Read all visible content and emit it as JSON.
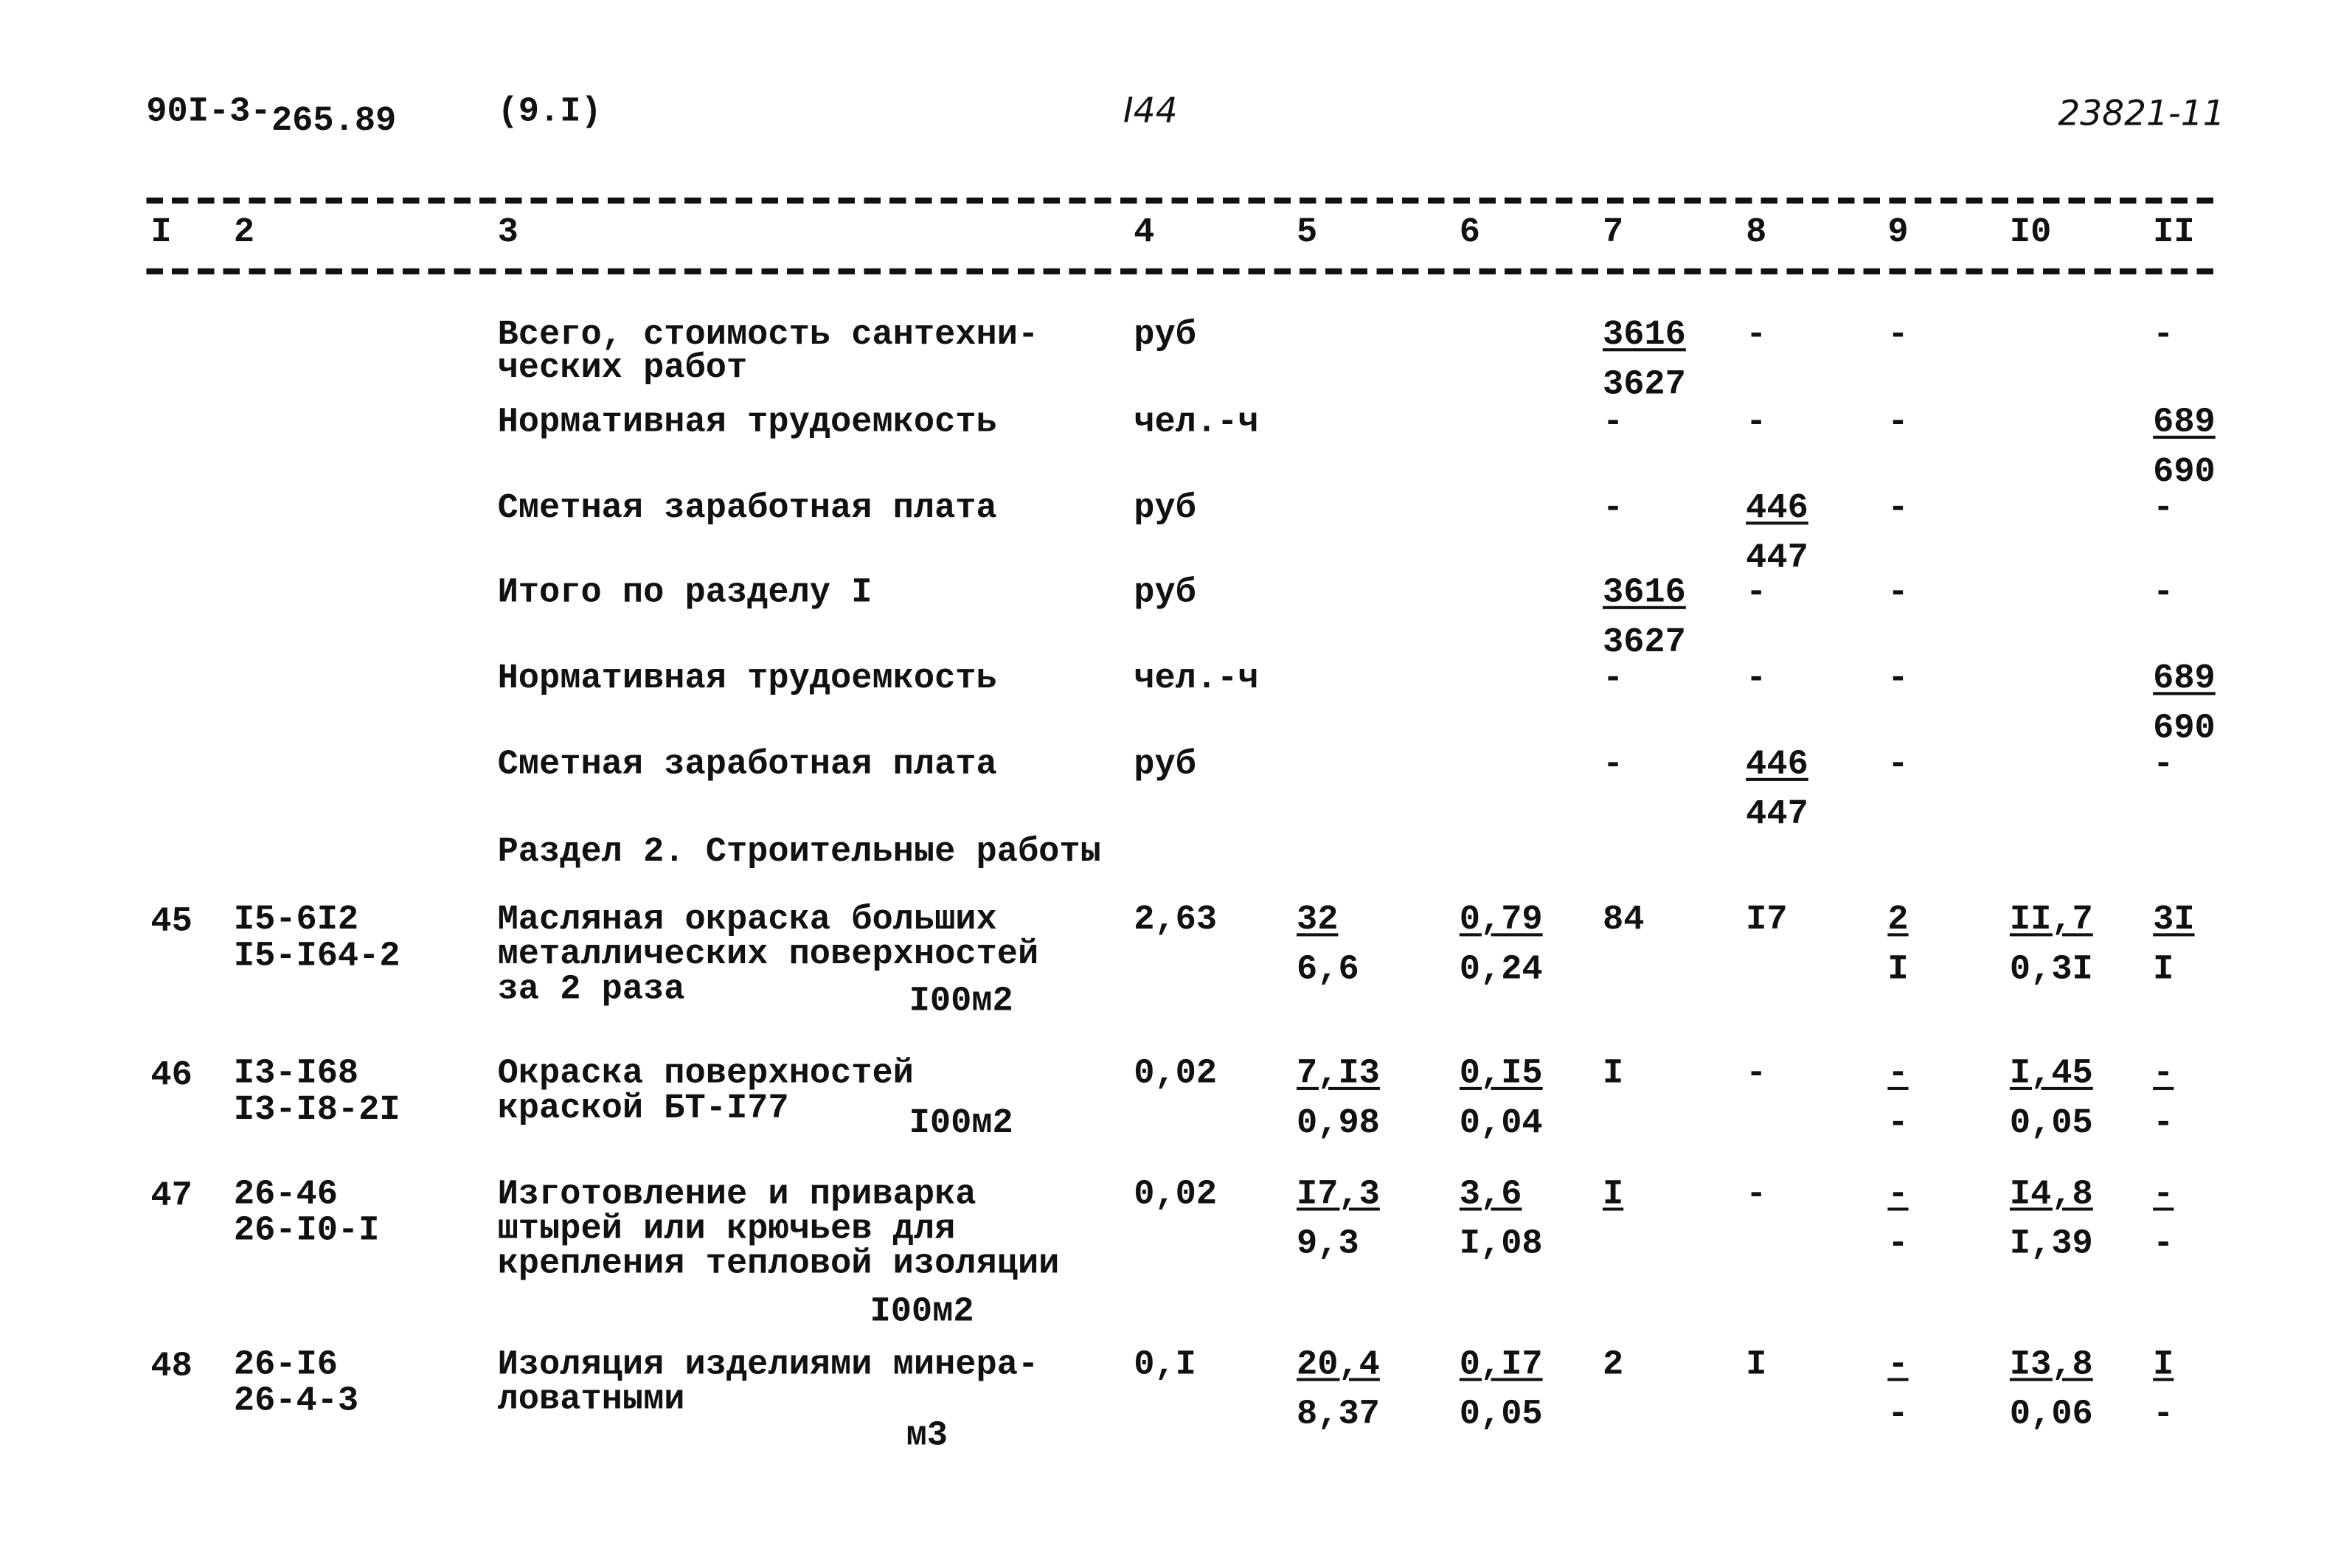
{
  "header": {
    "doc_code_a": "90I-3-",
    "doc_code_b": "265.89",
    "section_ref": "(9.I)",
    "page_number": "I44",
    "inventory_number": "23821-11"
  },
  "column_headers": [
    "I",
    "2",
    "3",
    "4",
    "5",
    "6",
    "7",
    "8",
    "9",
    "I0",
    "II"
  ],
  "summary_rows": [
    {
      "label": [
        "Всего, стоимость сантехни-",
        "ческих работ"
      ],
      "unit": "руб",
      "c7": [
        "3616",
        "3627"
      ],
      "c8": [
        "-"
      ],
      "c9": [
        "-"
      ],
      "c11": [
        "-"
      ]
    },
    {
      "label": [
        "Нормативная трудоемкость"
      ],
      "unit": "чел.-ч",
      "c7": [
        "-"
      ],
      "c8": [
        "-"
      ],
      "c9": [
        "-"
      ],
      "c11": [
        "689",
        "690"
      ]
    },
    {
      "label": [
        "Сметная заработная плата"
      ],
      "unit": "руб",
      "c7": [
        "-"
      ],
      "c8": [
        "446",
        "447"
      ],
      "c9": [
        "-"
      ],
      "c11": [
        "-"
      ]
    },
    {
      "label": [
        "Итого по разделу I"
      ],
      "unit": "руб",
      "c7": [
        "3616",
        "3627"
      ],
      "c8": [
        "-"
      ],
      "c9": [
        "-"
      ],
      "c11": [
        "-"
      ]
    },
    {
      "label": [
        "Нормативная трудоемкость"
      ],
      "unit": "чел.-ч",
      "c7": [
        "-"
      ],
      "c8": [
        "-"
      ],
      "c9": [
        "-"
      ],
      "c11": [
        "689",
        "690"
      ]
    },
    {
      "label": [
        "Сметная заработная плата"
      ],
      "unit": "руб",
      "c7": [
        "-"
      ],
      "c8": [
        "446",
        "447"
      ],
      "c9": [
        "-"
      ],
      "c11": [
        "-"
      ]
    }
  ],
  "section_title": "Раздел 2. Строительные работы",
  "items": [
    {
      "no": "45",
      "codes": [
        "I5-6I2",
        "I5-I64-2"
      ],
      "desc": [
        "Масляная окраска больших",
        "металлических поверхностей",
        "за 2 раза"
      ],
      "unit": "I00м2",
      "c4": [
        "2,63"
      ],
      "c5": [
        "32",
        "6,6"
      ],
      "c6": [
        "0,79",
        "0,24"
      ],
      "c7": [
        "84"
      ],
      "c8": [
        "I7"
      ],
      "c9": [
        "2",
        "I"
      ],
      "c10": [
        "II,7",
        "0,3I"
      ],
      "c11": [
        "3I",
        "I"
      ]
    },
    {
      "no": "46",
      "codes": [
        "I3-I68",
        "I3-I8-2I"
      ],
      "desc": [
        "Окраска поверхностей",
        "краской БТ-I77"
      ],
      "unit": "I00м2",
      "c4": [
        "0,02"
      ],
      "c5": [
        "7,I3",
        "0,98"
      ],
      "c6": [
        "0,I5",
        "0,04"
      ],
      "c7": [
        "I"
      ],
      "c8": [
        "-"
      ],
      "c9": [
        "-",
        "-"
      ],
      "c10": [
        "I,45",
        "0,05"
      ],
      "c11": [
        "-",
        "-"
      ]
    },
    {
      "no": "47",
      "codes": [
        "26-46",
        "26-I0-I"
      ],
      "desc": [
        "Изготовление и приварка",
        "штырей или крючьев для",
        "крепления тепловой изоляции"
      ],
      "unit": "I00м2",
      "c4": [
        "0,02"
      ],
      "c5": [
        "I7,3",
        "9,3"
      ],
      "c6": [
        "3,6",
        "I,08"
      ],
      "c7": [
        "I",
        ""
      ],
      "c8": [
        "-"
      ],
      "c9": [
        "-",
        "-"
      ],
      "c10": [
        "I4,8",
        "I,39"
      ],
      "c11": [
        "-",
        "-"
      ]
    },
    {
      "no": "48",
      "codes": [
        "26-I6",
        "26-4-3"
      ],
      "desc": [
        "Изоляция изделиями минера-",
        "ловатными"
      ],
      "unit": "м3",
      "c4": [
        "0,I"
      ],
      "c5": [
        "20,4",
        "8,37"
      ],
      "c6": [
        "0,I7",
        "0,05"
      ],
      "c7": [
        "2"
      ],
      "c8": [
        "I"
      ],
      "c9": [
        "-",
        "-"
      ],
      "c10": [
        "I3,8",
        "0,06"
      ],
      "c11": [
        "I",
        "-"
      ]
    }
  ]
}
